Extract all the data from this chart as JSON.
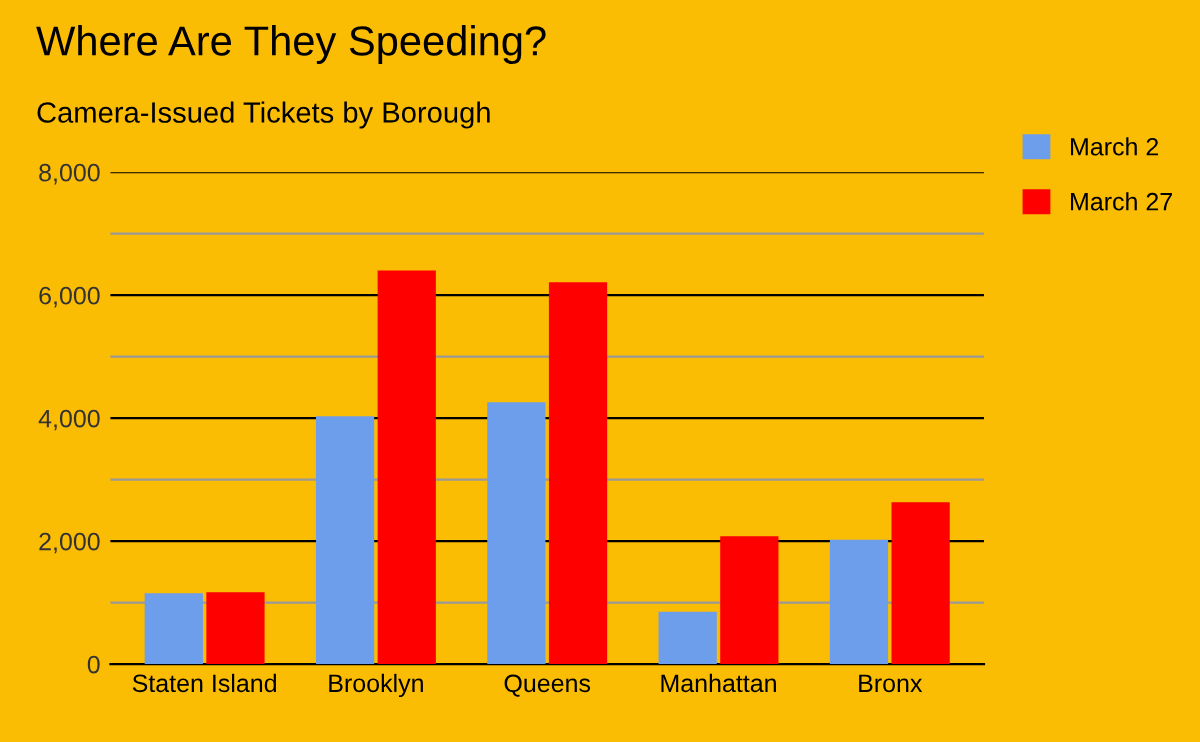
{
  "chart_data": {
    "type": "bar",
    "title": "Where Are They Speeding?",
    "subtitle": "Camera-Issued Tickets by Borough",
    "categories": [
      "Staten Island",
      "Brooklyn",
      "Queens",
      "Manhattan",
      "Bronx"
    ],
    "series": [
      {
        "name": "March 2",
        "color": "#6d9eeb",
        "values": [
          1150,
          4030,
          4260,
          850,
          2020
        ]
      },
      {
        "name": "March 27",
        "color": "#ff0000",
        "values": [
          1170,
          6400,
          6210,
          2080,
          2630
        ]
      }
    ],
    "ylim": [
      0,
      8000
    ],
    "yticks": [
      {
        "value": 0,
        "label": "0"
      },
      {
        "value": 1000,
        "label": null
      },
      {
        "value": 2000,
        "label": "2,000"
      },
      {
        "value": 3000,
        "label": null
      },
      {
        "value": 4000,
        "label": "4,000"
      },
      {
        "value": 5000,
        "label": null
      },
      {
        "value": 6000,
        "label": "6,000"
      },
      {
        "value": 7000,
        "label": null
      },
      {
        "value": 8000,
        "label": "8,000"
      }
    ],
    "grid": "y",
    "legend": "right"
  }
}
